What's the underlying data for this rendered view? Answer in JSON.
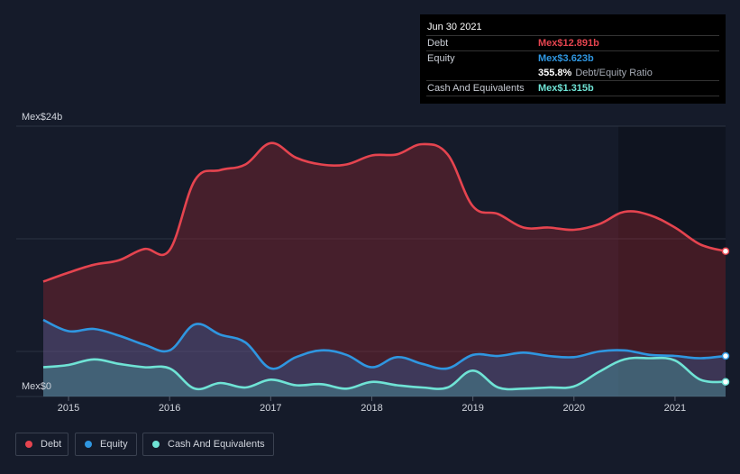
{
  "tooltip": {
    "date": "Jun 30 2021",
    "debt_label": "Debt",
    "debt_value": "Mex$12.891b",
    "equity_label": "Equity",
    "equity_value": "Mex$3.623b",
    "ratio_value": "355.8%",
    "ratio_label": "Debt/Equity Ratio",
    "cash_label": "Cash And Equivalents",
    "cash_value": "Mex$1.315b"
  },
  "legend": {
    "debt": "Debt",
    "equity": "Equity",
    "cash": "Cash And Equivalents"
  },
  "colors": {
    "debt": "#e5444f",
    "equity": "#2f96e0",
    "cash": "#6fe3d5",
    "background": "#151b2a"
  },
  "chart_data": {
    "type": "area",
    "y_axis_labels": [
      "Mex$0",
      "Mex$24b"
    ],
    "ylim": [
      0,
      24
    ],
    "xlim": [
      2014.75,
      2021.5
    ],
    "x_ticks": [
      2015,
      2016,
      2017,
      2018,
      2019,
      2020,
      2021
    ],
    "x_tick_labels": [
      "2015",
      "2016",
      "2017",
      "2018",
      "2019",
      "2020",
      "2021"
    ],
    "grid": true,
    "legend_position": "bottom-left",
    "series": [
      {
        "name": "Debt",
        "x": [
          2014.75,
          2015.0,
          2015.25,
          2015.5,
          2015.75,
          2016.0,
          2016.25,
          2016.5,
          2016.75,
          2017.0,
          2017.25,
          2017.5,
          2017.75,
          2018.0,
          2018.25,
          2018.5,
          2018.75,
          2019.0,
          2019.25,
          2019.5,
          2019.75,
          2020.0,
          2020.25,
          2020.5,
          2020.75,
          2021.0,
          2021.25,
          2021.5
        ],
        "values": [
          10.2,
          11.0,
          11.7,
          12.1,
          13.1,
          13.0,
          19.2,
          20.1,
          20.6,
          22.5,
          21.2,
          20.6,
          20.6,
          21.4,
          21.5,
          22.4,
          21.5,
          16.9,
          16.2,
          15.0,
          15.0,
          14.8,
          15.3,
          16.4,
          16.1,
          15.0,
          13.5,
          12.9
        ]
      },
      {
        "name": "Equity",
        "x": [
          2014.75,
          2015.0,
          2015.25,
          2015.5,
          2015.75,
          2016.0,
          2016.25,
          2016.5,
          2016.75,
          2017.0,
          2017.25,
          2017.5,
          2017.75,
          2018.0,
          2018.25,
          2018.5,
          2018.75,
          2019.0,
          2019.25,
          2019.5,
          2019.75,
          2020.0,
          2020.25,
          2020.5,
          2020.75,
          2021.0,
          2021.25,
          2021.5
        ],
        "values": [
          6.8,
          5.8,
          6.0,
          5.4,
          4.6,
          4.1,
          6.4,
          5.5,
          4.8,
          2.5,
          3.5,
          4.1,
          3.7,
          2.6,
          3.5,
          2.9,
          2.5,
          3.7,
          3.6,
          3.9,
          3.6,
          3.5,
          4.0,
          4.1,
          3.7,
          3.6,
          3.4,
          3.6
        ]
      },
      {
        "name": "Cash And Equivalents",
        "x": [
          2014.75,
          2015.0,
          2015.25,
          2015.5,
          2015.75,
          2016.0,
          2016.25,
          2016.5,
          2016.75,
          2017.0,
          2017.25,
          2017.5,
          2017.75,
          2018.0,
          2018.25,
          2018.5,
          2018.75,
          2019.0,
          2019.25,
          2019.5,
          2019.75,
          2020.0,
          2020.25,
          2020.5,
          2020.75,
          2021.0,
          2021.25,
          2021.5
        ],
        "values": [
          2.6,
          2.8,
          3.3,
          2.9,
          2.6,
          2.5,
          0.7,
          1.2,
          0.8,
          1.5,
          1.0,
          1.1,
          0.7,
          1.3,
          1.0,
          0.8,
          0.8,
          2.3,
          0.8,
          0.7,
          0.8,
          0.9,
          2.2,
          3.3,
          3.4,
          3.2,
          1.5,
          1.3
        ]
      }
    ]
  }
}
